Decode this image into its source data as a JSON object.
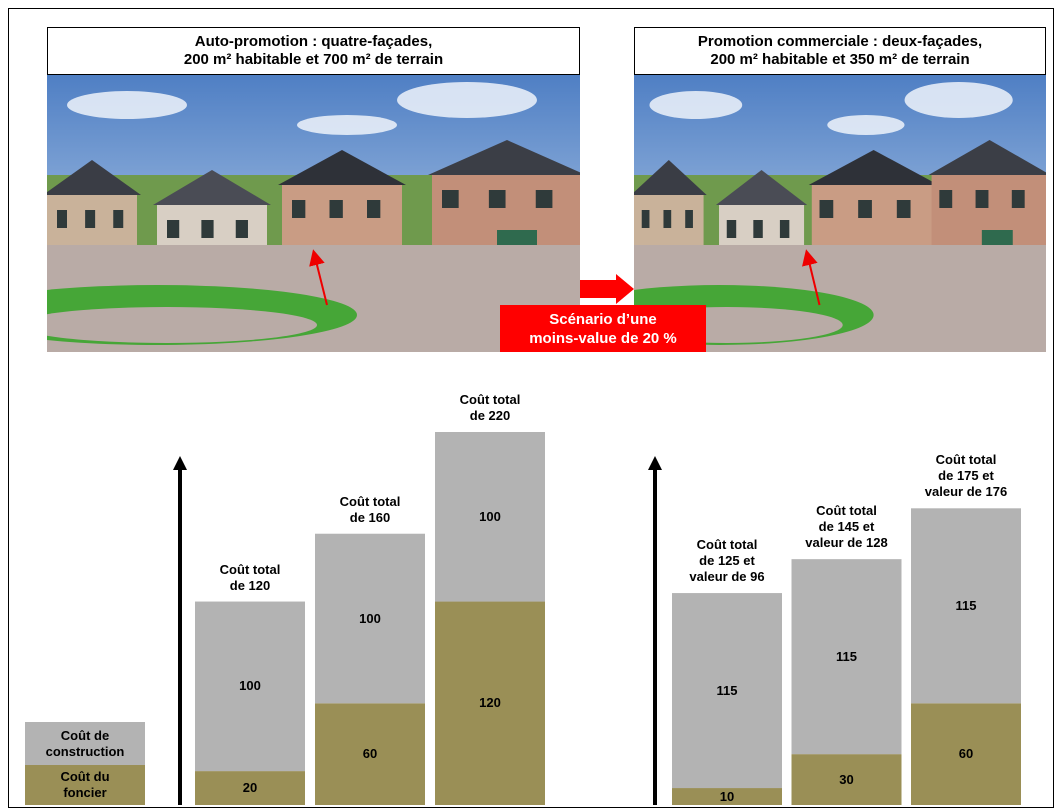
{
  "photos": [
    {
      "title": "Auto-promotion : quatre-façades,\n200 m² habitable et 700 m² de terrain"
    },
    {
      "title": "Promotion commerciale : deux-façades,\n200 m² habitable et 350 m² de terrain"
    }
  ],
  "banner": "Scénario d’une\nmoins-value de 20 %",
  "chart_data": [
    {
      "type": "bar",
      "stacked": true,
      "ylim": [
        0,
        220
      ],
      "series": [
        {
          "name": "Coût du foncier",
          "color": "#9a8f56",
          "values": [
            20,
            60,
            120
          ]
        },
        {
          "name": "Coût de construction",
          "color": "#b3b3b3",
          "values": [
            100,
            100,
            100
          ]
        }
      ],
      "annotations": [
        "Coût total\nde 120",
        "Coût total\nde 160",
        "Coût total\nde 220"
      ]
    },
    {
      "type": "bar",
      "stacked": true,
      "ylim": [
        0,
        220
      ],
      "series": [
        {
          "color": "#9a8f56",
          "values": [
            10,
            30,
            60
          ]
        },
        {
          "color": "#b3b3b3",
          "values": [
            115,
            115,
            115
          ]
        }
      ],
      "annotations": [
        "Coût total\nde 125 et\nvaleur de 96",
        "Coût total\nde 145 et\nvaleur de 128",
        "Coût total\nde 175 et\nvaleur de 176"
      ]
    }
  ]
}
